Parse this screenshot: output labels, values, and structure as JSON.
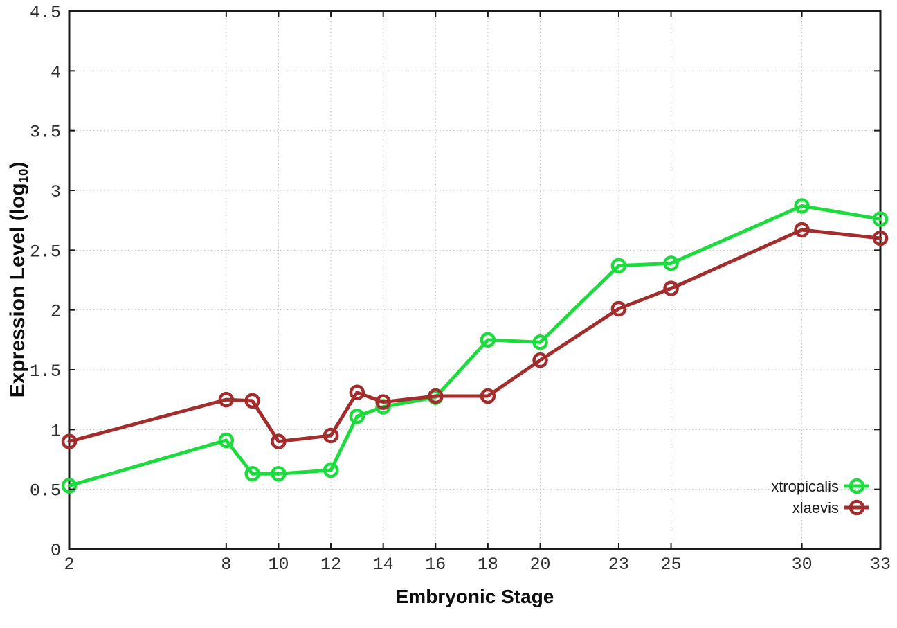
{
  "figure": {
    "background_color": "#ffffff",
    "border_color": "#1a1a1a",
    "grid_color": "#bcbcbc",
    "tick_label_color": "#2e2e2e"
  },
  "axes": {
    "ylabel_prefix": "Expression Level (log",
    "ylabel_sub": "10",
    "ylabel_suffix": ")",
    "xlabel": "Embryonic Stage"
  },
  "chart_data": {
    "type": "line",
    "title": "",
    "xlabel": "Embryonic Stage",
    "ylabel": "Expression Level (log10)",
    "xlim": [
      2,
      33
    ],
    "ylim": [
      0,
      4.5
    ],
    "x_ticks": [
      2,
      8,
      10,
      12,
      14,
      16,
      18,
      20,
      23,
      25,
      30,
      33
    ],
    "y_ticks": [
      0,
      0.5,
      1,
      1.5,
      2,
      2.5,
      3,
      3.5,
      4,
      4.5
    ],
    "grid": true,
    "marker": "open-circle",
    "legend_position": "inside-bottom-right",
    "series": [
      {
        "name": "xtropicalis",
        "color": "#1bdc3c",
        "x": [
          2,
          8,
          9,
          10,
          12,
          13,
          14,
          16,
          18,
          20,
          23,
          25,
          30,
          33
        ],
        "y": [
          0.53,
          0.91,
          0.63,
          0.63,
          0.66,
          1.11,
          1.19,
          1.27,
          1.75,
          1.73,
          2.37,
          2.39,
          2.87,
          2.76
        ]
      },
      {
        "name": "xlaevis",
        "color": "#a32c2c",
        "x": [
          2,
          8,
          9,
          10,
          12,
          13,
          14,
          16,
          18,
          20,
          23,
          25,
          30,
          33
        ],
        "y": [
          0.9,
          1.25,
          1.24,
          0.9,
          0.95,
          1.31,
          1.23,
          1.28,
          1.28,
          1.58,
          2.01,
          2.18,
          2.67,
          2.6
        ]
      }
    ]
  }
}
